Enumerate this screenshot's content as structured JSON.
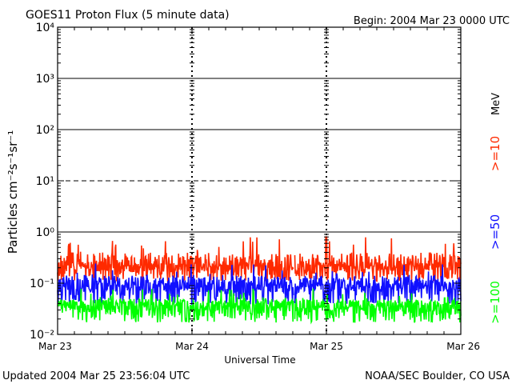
{
  "header": {
    "title": "GOES11 Proton Flux (5 minute data)",
    "begin": "Begin: 2004 Mar 23 0000 UTC"
  },
  "footer": {
    "updated": "Updated 2004 Mar 25 23:56:04 UTC",
    "credit": "NOAA/SEC Boulder, CO USA"
  },
  "colors": {
    "ge10": "#ff2a00",
    "ge50": "#1010ff",
    "ge100": "#00ff00",
    "axis": "#000000"
  },
  "chart_data": {
    "type": "line",
    "title": "GOES11 Proton Flux (5 minute data)",
    "xlabel": "Universal Time",
    "ylabel": "Particles cm⁻²s⁻¹sr⁻¹",
    "yscale": "log",
    "ylim": [
      0.01,
      10000
    ],
    "ytick_labels": [
      "10⁻²",
      "10⁻¹",
      "10⁰",
      "10¹",
      "10²",
      "10³",
      "10⁴"
    ],
    "xlim": [
      "2004-03-23 00:00",
      "2004-03-26 00:00"
    ],
    "xtick_labels": [
      "Mar 23",
      "Mar 24",
      "Mar 25",
      "Mar 26"
    ],
    "grid": "horizontal lines at each decade; dashed at 10¹",
    "units_label": "MeV",
    "legend_position": "right, vertical",
    "series": [
      {
        "name": ">=10",
        "color": "#ff2a00",
        "typical": 0.17,
        "min": 0.08,
        "max": 0.8
      },
      {
        "name": ">=50",
        "color": "#1010ff",
        "typical": 0.07,
        "min": 0.025,
        "max": 0.25
      },
      {
        "name": ">=100",
        "color": "#00ff00",
        "typical": 0.028,
        "min": 0.012,
        "max": 0.08
      }
    ]
  }
}
